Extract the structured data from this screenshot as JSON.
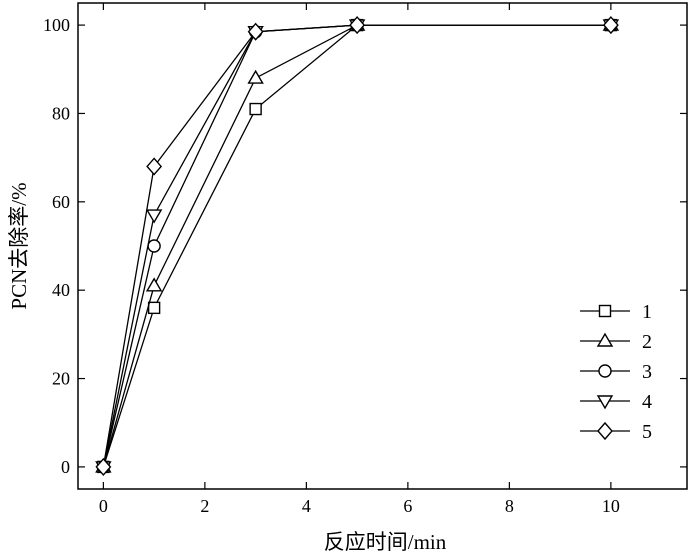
{
  "chart_data": {
    "type": "line",
    "title": "",
    "xlabel": "反应时间/min",
    "ylabel": "PCN去除率/%",
    "xlim": [
      -0.5,
      11.5
    ],
    "ylim": [
      -5,
      105
    ],
    "xticks": [
      0,
      2,
      4,
      6,
      8,
      10
    ],
    "yticks": [
      0,
      20,
      40,
      60,
      80,
      100
    ],
    "grid": false,
    "legend_position": "lower-right",
    "x": [
      0,
      1,
      3,
      5,
      10
    ],
    "series": [
      {
        "name": "1",
        "marker": "square",
        "values": [
          0,
          36,
          81,
          100,
          100
        ]
      },
      {
        "name": "2",
        "marker": "triangle-up",
        "values": [
          0,
          41,
          88,
          100,
          100
        ]
      },
      {
        "name": "3",
        "marker": "circle",
        "values": [
          0,
          50,
          98.5,
          100,
          100
        ]
      },
      {
        "name": "4",
        "marker": "triangle-down",
        "values": [
          0,
          57,
          98.5,
          100,
          100
        ]
      },
      {
        "name": "5",
        "marker": "diamond",
        "values": [
          0,
          68,
          98.5,
          100,
          100
        ]
      }
    ]
  }
}
